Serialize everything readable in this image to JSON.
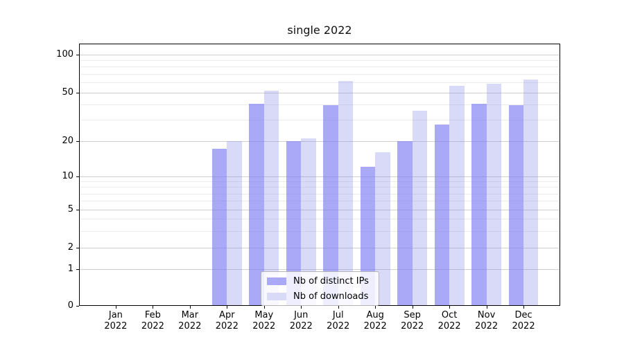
{
  "chart_data": {
    "type": "bar",
    "title": "single 2022",
    "categories": [
      "Jan",
      "Feb",
      "Mar",
      "Apr",
      "May",
      "Jun",
      "Jul",
      "Aug",
      "Sep",
      "Oct",
      "Nov",
      "Dec"
    ],
    "year_suffix": "2022",
    "series": [
      {
        "name": "Nb of distinct IPs",
        "color": "#a9a9f7",
        "values": [
          0,
          0,
          0,
          17,
          40,
          20,
          39,
          12,
          20,
          27,
          40,
          39
        ]
      },
      {
        "name": "Nb of downloads",
        "color": "#d9d9f8",
        "values": [
          0,
          0,
          0,
          20,
          51,
          21,
          61,
          16,
          35,
          56,
          58,
          63
        ]
      }
    ],
    "yscale": "asinh",
    "yticks": [
      0,
      1,
      2,
      5,
      10,
      20,
      50,
      100
    ],
    "yticks_minor": [
      3,
      4,
      6,
      7,
      8,
      9,
      30,
      40,
      60,
      70,
      80,
      90
    ],
    "ylim": [
      0,
      122
    ],
    "grid": true,
    "legend_position": "lower center",
    "colors": {
      "grid_major": "#cfcfcf",
      "grid_minor": "#ebebeb",
      "spine": "#000000"
    }
  }
}
